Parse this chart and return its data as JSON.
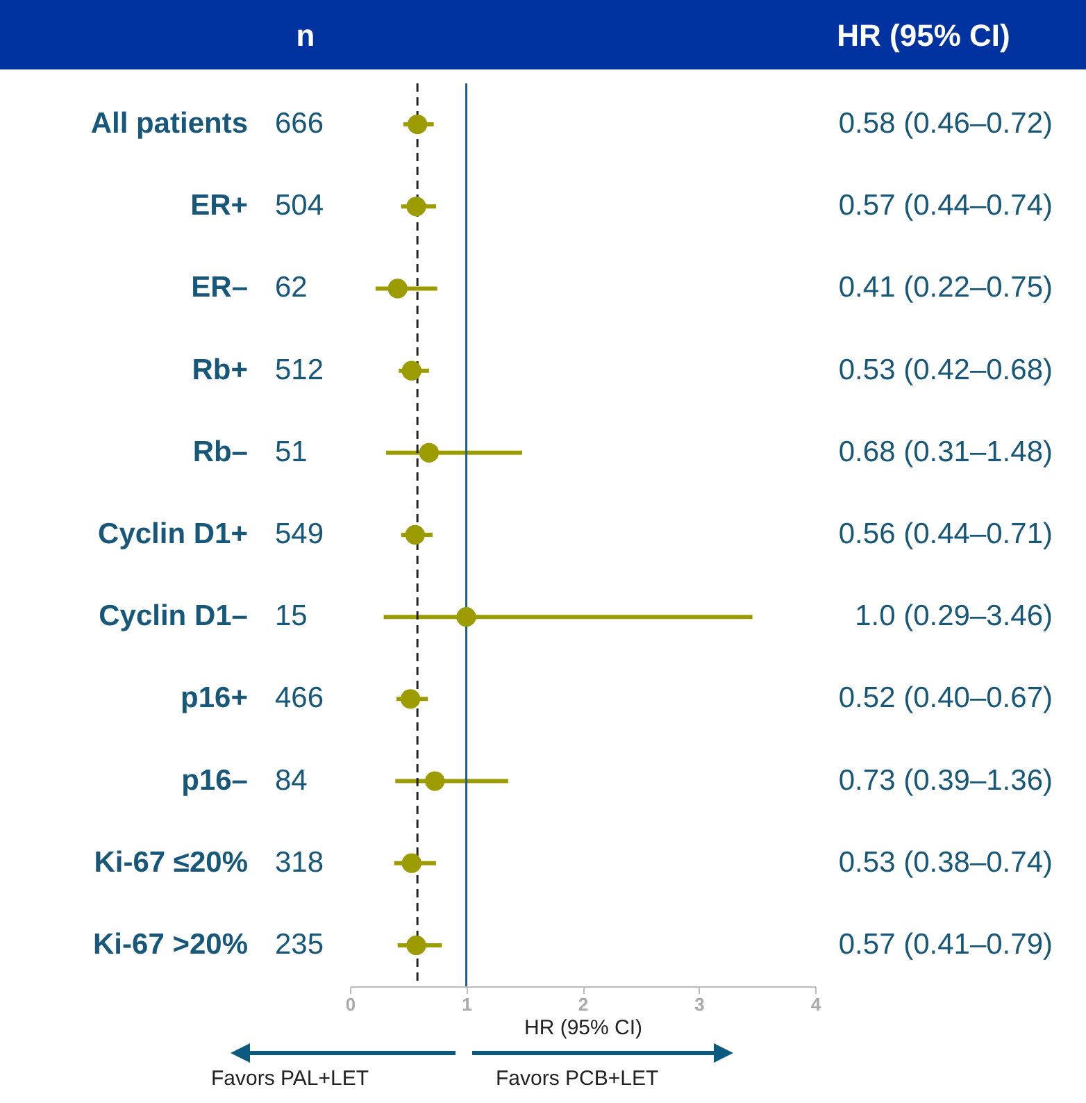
{
  "chart_data": {
    "type": "scatter",
    "orientation": "horizontal",
    "marker": "circle",
    "color": "#9c9c00",
    "grid": false,
    "categories": [
      "All patients",
      "ER+",
      "ER–",
      "Rb+",
      "Rb–",
      "Cyclin D1+",
      "Cyclin D1–",
      "p16+",
      "p16–",
      "Ki-67 ≤20%",
      "Ki-67 >20%"
    ],
    "values": [
      0.58,
      0.57,
      0.41,
      0.53,
      0.68,
      0.56,
      1.0,
      0.52,
      0.73,
      0.53,
      0.57
    ],
    "errors": [
      [
        0.46,
        0.72
      ],
      [
        0.44,
        0.74
      ],
      [
        0.22,
        0.75
      ],
      [
        0.42,
        0.68
      ],
      [
        0.31,
        1.48
      ],
      [
        0.44,
        0.71
      ],
      [
        0.29,
        3.46
      ],
      [
        0.4,
        0.67
      ],
      [
        0.39,
        1.36
      ],
      [
        0.38,
        0.74
      ],
      [
        0.41,
        0.79
      ]
    ],
    "value_labels": [
      "0.58 (0.46–0.72)",
      "0.57 (0.44–0.74)",
      "0.41 (0.22–0.75)",
      "0.53 (0.42–0.68)",
      "0.68 (0.31–1.48)",
      "0.56 (0.44–0.71)",
      "1.0 (0.29–3.46)",
      "0.52 (0.40–0.67)",
      "0.73 (0.39–1.36)",
      "0.53 (0.38–0.74)",
      "0.57 (0.41–0.79)"
    ],
    "xlabel": "HR (95% CI)",
    "xlim": [
      0,
      4
    ],
    "xticks": [
      0,
      1,
      2,
      3,
      4
    ],
    "ref_lines": [
      {
        "axis": "x",
        "value": 1,
        "color": "#1f5f8b",
        "line_style": "solid"
      },
      {
        "axis": "x",
        "value": 0.58,
        "color": "#222222",
        "line_style": "dashed"
      }
    ],
    "annotations": [
      "n",
      "HR (95% CI)",
      "Favors PAL+LET",
      "Favors PCB+LET",
      "666",
      "504",
      "62",
      "512",
      "51",
      "549",
      "15",
      "466",
      "84",
      "318",
      "235"
    ]
  }
}
